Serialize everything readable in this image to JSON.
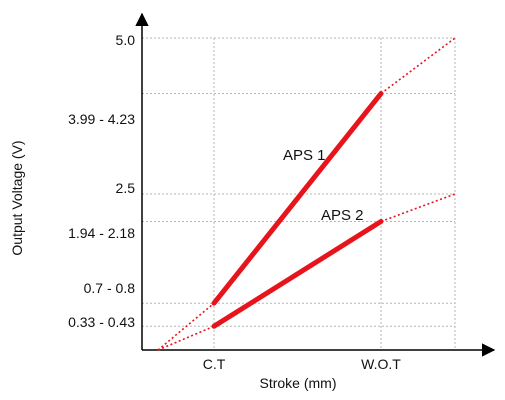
{
  "chart_data": {
    "type": "line",
    "xlabel": "Stroke (mm)",
    "ylabel": "Output Voltage (V)",
    "x_ticks": [
      "C.T",
      "W.O.T"
    ],
    "y_ticks": [
      "5.0",
      "3.99 - 4.23",
      "2.5",
      "1.94 - 2.18",
      "0.7 - 0.8",
      "0.33 - 0.43"
    ],
    "y_tick_values": [
      5.0,
      4.11,
      2.5,
      2.06,
      0.75,
      0.38
    ],
    "grid": true,
    "series": [
      {
        "name": "APS 1",
        "color": "#e8141c",
        "solid_segment": {
          "x": [
            "C.T",
            "W.O.T"
          ],
          "y": [
            0.75,
            4.11
          ]
        },
        "extension_to_max": {
          "y": [
            5.0
          ]
        }
      },
      {
        "name": "APS 2",
        "color": "#e8141c",
        "solid_segment": {
          "x": [
            "C.T",
            "W.O.T"
          ],
          "y": [
            0.38,
            2.06
          ]
        },
        "extension_to_max": {
          "y": [
            2.5
          ]
        }
      }
    ]
  }
}
